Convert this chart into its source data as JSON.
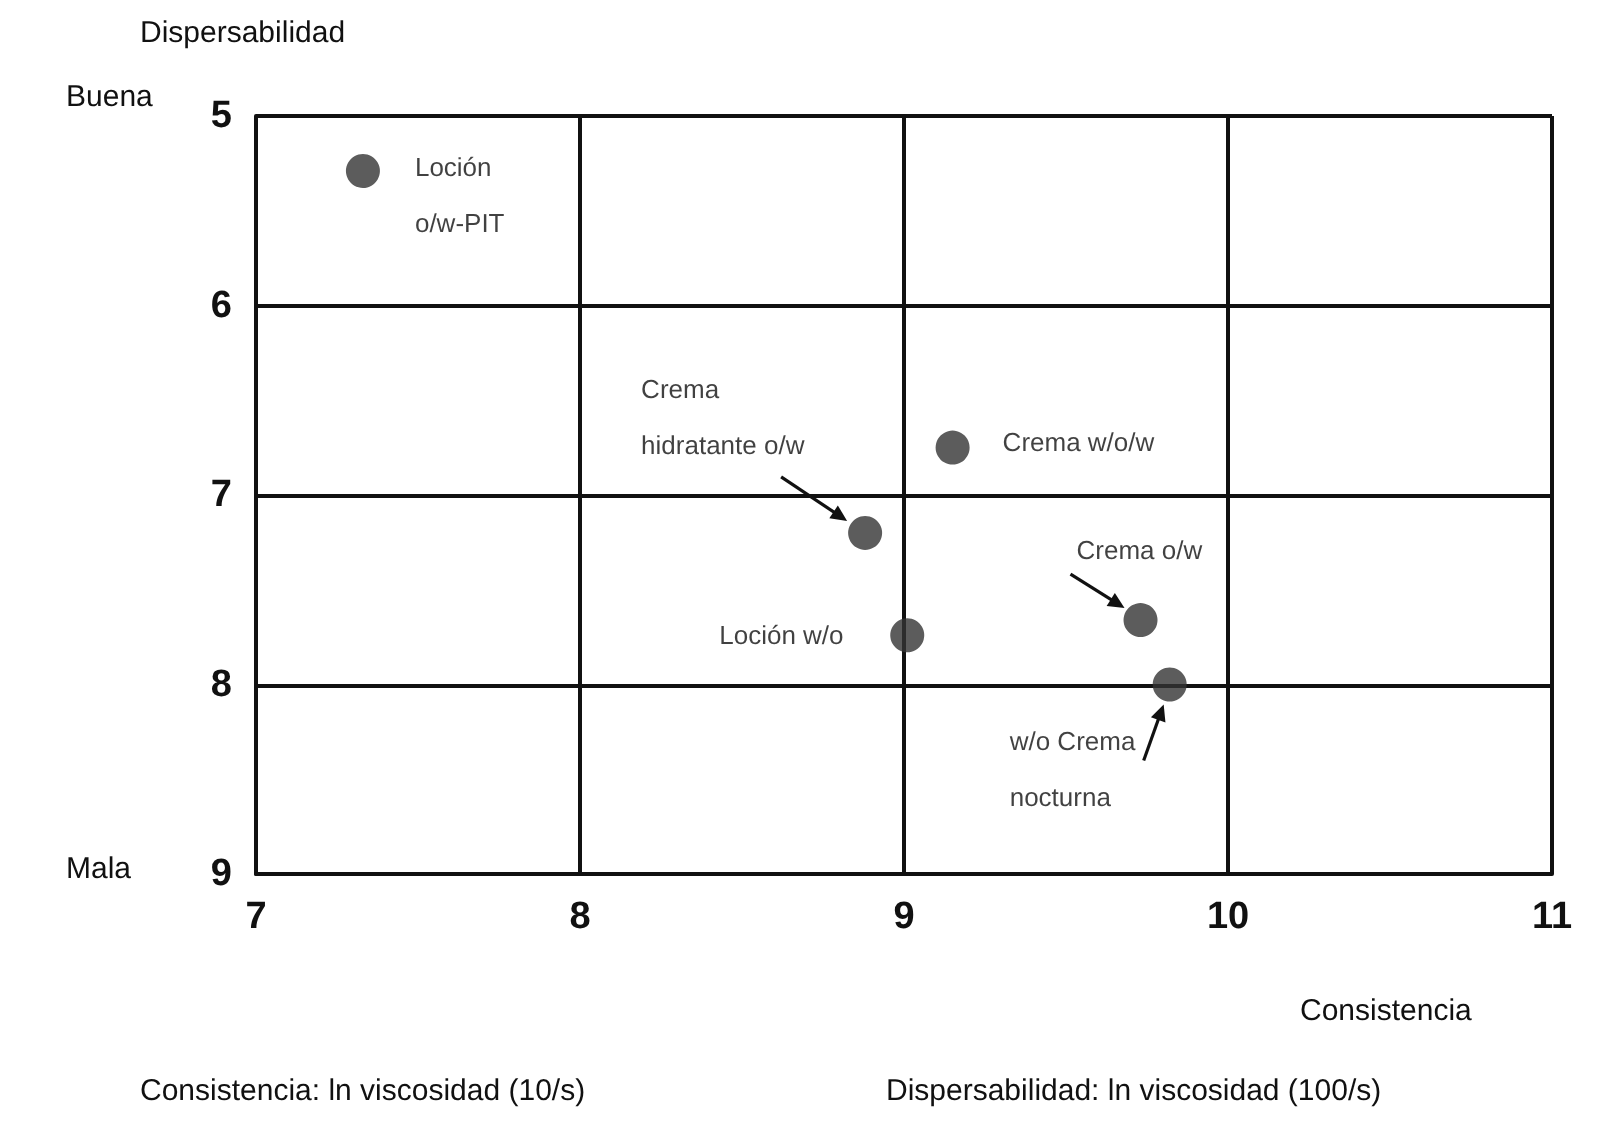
{
  "chart_data": {
    "type": "scatter",
    "xlabel": "Consistencia",
    "ylabel": "Dispersabilidad",
    "xlim": [
      7,
      11
    ],
    "xticks": [
      7,
      8,
      9,
      10,
      11
    ],
    "ylim": [
      9,
      5
    ],
    "yticks": [
      5,
      6,
      7,
      8,
      9
    ],
    "grid": true,
    "marker": "circle",
    "series": [
      {
        "name": "Loción o/w-PIT",
        "color": "#333333",
        "x": [
          7.33
        ],
        "values": [
          5.29
        ]
      },
      {
        "name": "Crema w/o/w",
        "color": "#333333",
        "x": [
          9.15
        ],
        "values": [
          6.75
        ]
      },
      {
        "name": "Crema hidratante o/w",
        "color": "#333333",
        "x": [
          8.88
        ],
        "values": [
          7.2
        ]
      },
      {
        "name": "Loción w/o",
        "color": "#333333",
        "x": [
          9.01
        ],
        "values": [
          7.74
        ]
      },
      {
        "name": "Crema o/w",
        "color": "#333333",
        "x": [
          9.73
        ],
        "values": [
          7.66
        ]
      },
      {
        "name": "w/o Crema nocturna",
        "color": "#333333",
        "x": [
          9.82
        ],
        "values": [
          8.0
        ]
      }
    ],
    "annotations": [
      "Buena",
      "Mala",
      "Consistencia: ln viscosidad (10/s)",
      "Dispersabilidad: ln viscosidad (100/s)"
    ]
  }
}
